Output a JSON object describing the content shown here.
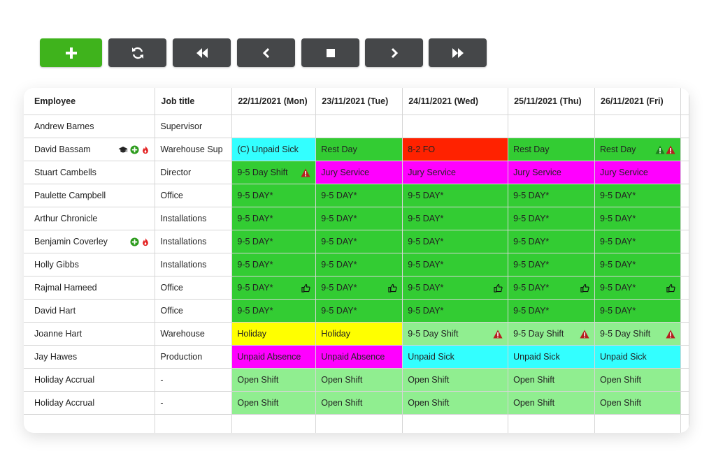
{
  "toolbar": {
    "buttons": [
      {
        "name": "add-button",
        "icon": "plus-icon"
      },
      {
        "name": "refresh-button",
        "icon": "refresh-icon"
      },
      {
        "name": "rewind-button",
        "icon": "double-chevron-left-icon"
      },
      {
        "name": "previous-button",
        "icon": "chevron-left-icon"
      },
      {
        "name": "stop-button",
        "icon": "square-stop-icon"
      },
      {
        "name": "next-button",
        "icon": "chevron-right-icon"
      },
      {
        "name": "fast-forward-button",
        "icon": "double-chevron-right-icon"
      }
    ]
  },
  "colors": {
    "green": "#33cc33",
    "light_green": "#90ee90",
    "cyan": "#33ffff",
    "red": "#ff2200",
    "magenta": "#ff00ff",
    "yellow": "#ffff00",
    "white": "#ffffff"
  },
  "table": {
    "headers": [
      "Employee",
      "Job title",
      "22/11/2021 (Mon)",
      "23/11/2021 (Tue)",
      "24/11/2021 (Wed)",
      "25/11/2021 (Thu)",
      "26/11/2021 (Fri)"
    ],
    "rows": [
      {
        "employee": "Andrew Barnes",
        "job": "Supervisor",
        "icons": [],
        "shifts": [
          {
            "text": "",
            "color": "white"
          },
          {
            "text": "",
            "color": "white"
          },
          {
            "text": "",
            "color": "white"
          },
          {
            "text": "",
            "color": "white"
          },
          {
            "text": "",
            "color": "white"
          }
        ]
      },
      {
        "employee": "David Bassam",
        "job": "Warehouse Sup",
        "icons": [
          "graduation-cap-icon",
          "plus-circle-icon",
          "fire-icon"
        ],
        "shifts": [
          {
            "text": "(C) Unpaid Sick",
            "color": "cyan"
          },
          {
            "text": "Rest Day",
            "color": "green"
          },
          {
            "text": "8-2 FO",
            "color": "red"
          },
          {
            "text": "Rest Day",
            "color": "green"
          },
          {
            "text": "Rest Day",
            "color": "green",
            "icons": [
              "warning-green-icon",
              "warning-red-icon"
            ]
          }
        ]
      },
      {
        "employee": "Stuart Cambells",
        "job": "Director",
        "icons": [],
        "shifts": [
          {
            "text": "9-5 Day Shift",
            "color": "green",
            "icons": [
              "warning-red-icon"
            ]
          },
          {
            "text": "Jury Service",
            "color": "magenta"
          },
          {
            "text": "Jury Service",
            "color": "magenta"
          },
          {
            "text": "Jury Service",
            "color": "magenta"
          },
          {
            "text": "Jury Service",
            "color": "magenta"
          }
        ]
      },
      {
        "employee": "Paulette Campbell",
        "job": "Office",
        "icons": [],
        "shifts": [
          {
            "text": "9-5 DAY*",
            "color": "green"
          },
          {
            "text": "9-5 DAY*",
            "color": "green"
          },
          {
            "text": "9-5 DAY*",
            "color": "green"
          },
          {
            "text": "9-5 DAY*",
            "color": "green"
          },
          {
            "text": "9-5 DAY*",
            "color": "green"
          }
        ]
      },
      {
        "employee": "Arthur Chronicle",
        "job": "Installations",
        "icons": [],
        "shifts": [
          {
            "text": "9-5 DAY*",
            "color": "green"
          },
          {
            "text": "9-5 DAY*",
            "color": "green"
          },
          {
            "text": "9-5 DAY*",
            "color": "green"
          },
          {
            "text": "9-5 DAY*",
            "color": "green"
          },
          {
            "text": "9-5 DAY*",
            "color": "green"
          }
        ]
      },
      {
        "employee": "Benjamin Coverley",
        "job": "Installations",
        "icons": [
          "plus-circle-icon",
          "fire-icon"
        ],
        "shifts": [
          {
            "text": "9-5 DAY*",
            "color": "green"
          },
          {
            "text": "9-5 DAY*",
            "color": "green"
          },
          {
            "text": "9-5 DAY*",
            "color": "green"
          },
          {
            "text": "9-5 DAY*",
            "color": "green"
          },
          {
            "text": "9-5 DAY*",
            "color": "green"
          }
        ]
      },
      {
        "employee": "Holly Gibbs",
        "job": "Installations",
        "icons": [],
        "shifts": [
          {
            "text": "9-5 DAY*",
            "color": "green"
          },
          {
            "text": "9-5 DAY*",
            "color": "green"
          },
          {
            "text": "9-5 DAY*",
            "color": "green"
          },
          {
            "text": "9-5 DAY*",
            "color": "green"
          },
          {
            "text": "9-5 DAY*",
            "color": "green"
          }
        ]
      },
      {
        "employee": "Rajmal Hameed",
        "job": "Office",
        "icons": [],
        "shifts": [
          {
            "text": "9-5 DAY*",
            "color": "green",
            "icons": [
              "thumbs-up-icon"
            ]
          },
          {
            "text": "9-5 DAY*",
            "color": "green",
            "icons": [
              "thumbs-up-icon"
            ]
          },
          {
            "text": "9-5 DAY*",
            "color": "green",
            "icons": [
              "thumbs-up-icon"
            ]
          },
          {
            "text": "9-5 DAY*",
            "color": "green",
            "icons": [
              "thumbs-up-icon"
            ]
          },
          {
            "text": "9-5 DAY*",
            "color": "green",
            "icons": [
              "thumbs-up-icon"
            ]
          }
        ]
      },
      {
        "employee": "David Hart",
        "job": "Office",
        "icons": [],
        "shifts": [
          {
            "text": "9-5 DAY*",
            "color": "green"
          },
          {
            "text": "9-5 DAY*",
            "color": "green"
          },
          {
            "text": "9-5 DAY*",
            "color": "green"
          },
          {
            "text": "9-5 DAY*",
            "color": "green"
          },
          {
            "text": "9-5 DAY*",
            "color": "green"
          }
        ]
      },
      {
        "employee": "Joanne Hart",
        "job": "Warehouse",
        "icons": [],
        "shifts": [
          {
            "text": "Holiday",
            "color": "yellow"
          },
          {
            "text": "Holiday",
            "color": "yellow"
          },
          {
            "text": "9-5 Day Shift",
            "color": "light_green",
            "icons": [
              "warning-red-icon"
            ]
          },
          {
            "text": "9-5 Day Shift",
            "color": "light_green",
            "icons": [
              "warning-red-icon"
            ]
          },
          {
            "text": "9-5 Day Shift",
            "color": "light_green",
            "icons": [
              "warning-red-icon"
            ]
          }
        ]
      },
      {
        "employee": "Jay Hawes",
        "job": "Production",
        "icons": [],
        "shifts": [
          {
            "text": "Unpaid Absence",
            "color": "magenta"
          },
          {
            "text": "Unpaid Absence",
            "color": "magenta"
          },
          {
            "text": "Unpaid Sick",
            "color": "cyan"
          },
          {
            "text": "Unpaid Sick",
            "color": "cyan"
          },
          {
            "text": "Unpaid Sick",
            "color": "cyan"
          }
        ]
      },
      {
        "employee": "Holiday Accrual",
        "job": "-",
        "icons": [],
        "shifts": [
          {
            "text": "Open Shift",
            "color": "light_green"
          },
          {
            "text": "Open Shift",
            "color": "light_green"
          },
          {
            "text": "Open Shift",
            "color": "light_green"
          },
          {
            "text": "Open Shift",
            "color": "light_green"
          },
          {
            "text": "Open Shift",
            "color": "light_green"
          }
        ]
      },
      {
        "employee": "Holiday Accrual",
        "job": "-",
        "icons": [],
        "shifts": [
          {
            "text": "Open Shift",
            "color": "light_green"
          },
          {
            "text": "Open Shift",
            "color": "light_green"
          },
          {
            "text": "Open Shift",
            "color": "light_green"
          },
          {
            "text": "Open Shift",
            "color": "light_green"
          },
          {
            "text": "Open Shift",
            "color": "light_green"
          }
        ]
      },
      {
        "employee": "",
        "job": "",
        "icons": [],
        "shifts": [
          {
            "text": "",
            "color": "white"
          },
          {
            "text": "",
            "color": "white"
          },
          {
            "text": "",
            "color": "white"
          },
          {
            "text": "",
            "color": "white"
          },
          {
            "text": "",
            "color": "white"
          }
        ]
      }
    ]
  }
}
